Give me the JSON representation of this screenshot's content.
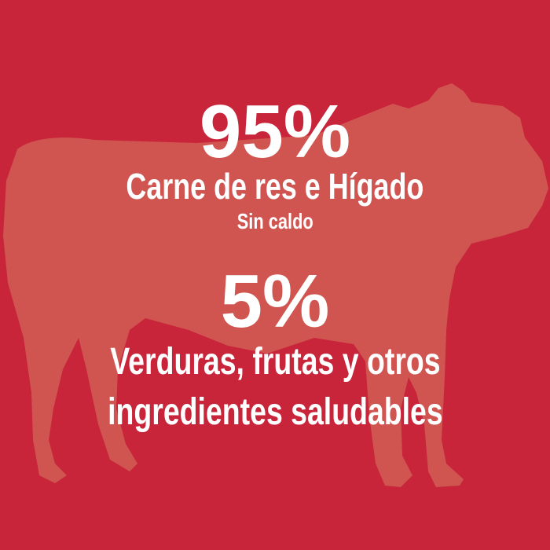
{
  "colors": {
    "background": "#C8243A",
    "silhouette": "#D05550",
    "text": "#FFFFFF"
  },
  "illustration": "cow-silhouette",
  "stat1": {
    "value": "95%",
    "label": "Carne de res e Hígado",
    "sublabel": "Sin caldo"
  },
  "stat2": {
    "value": "5%",
    "label_line1": "Verduras, frutas y otros",
    "label_line2": "ingredientes saludables"
  }
}
